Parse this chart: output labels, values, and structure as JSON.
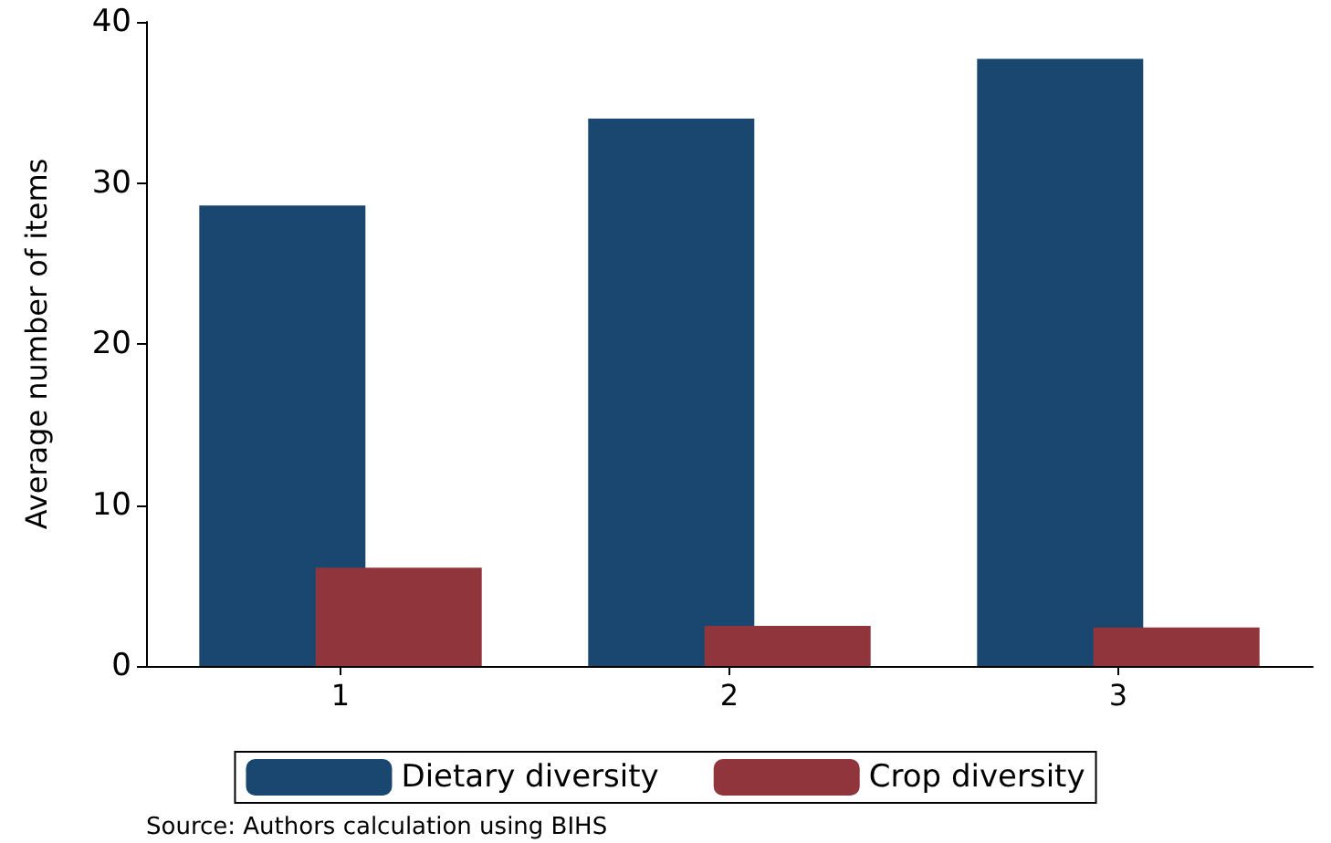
{
  "chart_data": {
    "type": "bar",
    "categories": [
      "1",
      "2",
      "3"
    ],
    "series": [
      {
        "name": "Dietary diversity",
        "color": "#1a476f",
        "values": [
          28.6,
          34.0,
          37.7
        ]
      },
      {
        "name": "Crop diversity",
        "color": "#90353b",
        "values": [
          6.1,
          2.5,
          2.4
        ]
      }
    ],
    "ylabel": "Average number of items",
    "ylim": [
      0,
      40
    ],
    "yticks": [
      0,
      10,
      20,
      30,
      40
    ],
    "grid": false,
    "legend": "bottom",
    "annotations": [
      "Source: Authors calculation using BIHS"
    ]
  }
}
